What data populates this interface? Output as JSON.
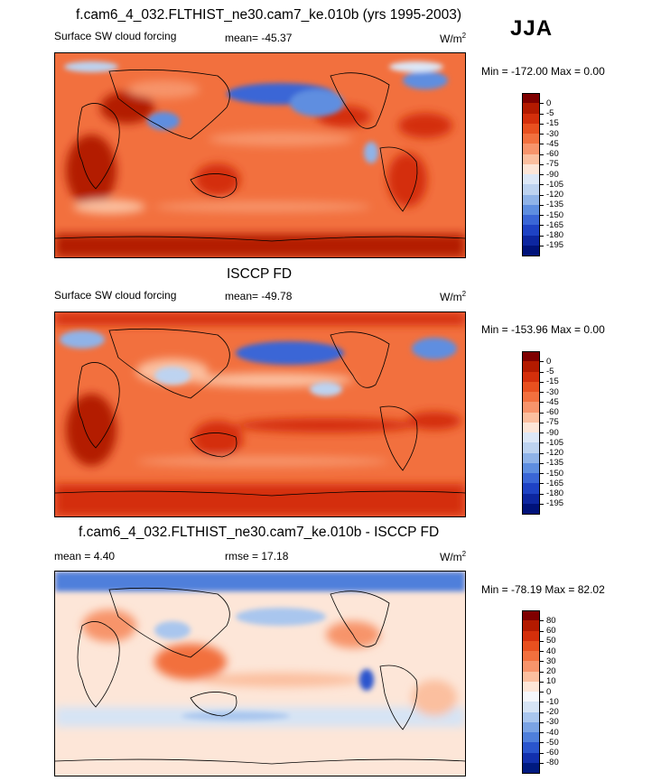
{
  "season": "JJA",
  "panels": [
    {
      "title": "f.cam6_4_032.FLTHIST_ne30.cam7_ke.010b (yrs 1995-2003)",
      "left_label": "Surface SW cloud forcing",
      "center_label": "mean= -45.37",
      "units": "W/m",
      "units_sup": "2",
      "minmax": "Min = -172.00 Max =   0.00",
      "colorbar_levels": [
        "0",
        "-5",
        "-15",
        "-30",
        "-45",
        "-60",
        "-75",
        "-90",
        "-105",
        "-120",
        "-135",
        "-150",
        "-165",
        "-180",
        "-195"
      ],
      "colors": [
        "#7f0000",
        "#b31a00",
        "#d42f0b",
        "#e8501f",
        "#f2703e",
        "#f7946b",
        "#fbbf9f",
        "#fde6d8",
        "#dde8f7",
        "#bdd3f0",
        "#8fb3e8",
        "#5e8ee0",
        "#3a66d6",
        "#1e42c4",
        "#0d26a0",
        "#00127a"
      ]
    },
    {
      "title": "ISCCP FD",
      "left_label": "Surface SW cloud forcing",
      "center_label": "mean= -49.78",
      "units": "W/m",
      "units_sup": "2",
      "minmax": "Min = -153.96 Max =   0.00",
      "colorbar_levels": [
        "0",
        "-5",
        "-15",
        "-30",
        "-45",
        "-60",
        "-75",
        "-90",
        "-105",
        "-120",
        "-135",
        "-150",
        "-165",
        "-180",
        "-195"
      ],
      "colors": [
        "#7f0000",
        "#b31a00",
        "#d42f0b",
        "#e8501f",
        "#f2703e",
        "#f7946b",
        "#fbbf9f",
        "#fde6d8",
        "#dde8f7",
        "#bdd3f0",
        "#8fb3e8",
        "#5e8ee0",
        "#3a66d6",
        "#1e42c4",
        "#0d26a0",
        "#00127a"
      ]
    },
    {
      "title": "f.cam6_4_032.FLTHIST_ne30.cam7_ke.010b - ISCCP FD",
      "left_label": "mean =  4.40",
      "center_label": "rmse =  17.18",
      "units": "W/m",
      "units_sup": "2",
      "minmax": "Min = -78.19 Max =  82.02",
      "colorbar_levels": [
        "80",
        "60",
        "50",
        "40",
        "30",
        "20",
        "10",
        "0",
        "-10",
        "-20",
        "-30",
        "-40",
        "-50",
        "-60",
        "-80"
      ],
      "colors": [
        "#7f0000",
        "#b31a00",
        "#d42f0b",
        "#e8501f",
        "#f2703e",
        "#f7946b",
        "#fbbf9f",
        "#fde6d8",
        "#f5f7fb",
        "#d6e4f5",
        "#a9c6ee",
        "#7aa3e4",
        "#4f7fdb",
        "#2a55cd",
        "#1230ad",
        "#001a80"
      ]
    }
  ]
}
